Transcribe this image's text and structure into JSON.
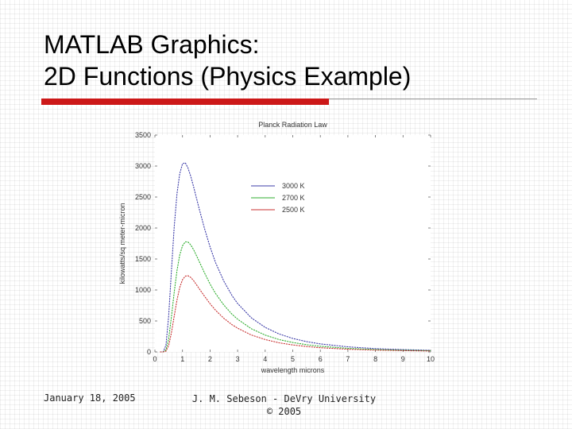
{
  "slide": {
    "title_line1": "MATLAB Graphics:",
    "title_line2": "2D Functions (Physics Example)",
    "footer_date": "January 18, 2005",
    "footer_author_line1": "J. M. Sebeson - DeVry University",
    "footer_author_line2": "© 2005"
  },
  "colors": {
    "accent_bar": "#cc1818",
    "series_3000": "#3c3ca8",
    "series_2700": "#2fae2f",
    "series_2500": "#c83232"
  },
  "chart_data": {
    "type": "line",
    "title": "Planck Radiation Law",
    "xlabel": "wavelength microns",
    "ylabel": "kilowatts/sq meter-micron",
    "xlim": [
      0,
      10
    ],
    "ylim": [
      0,
      3500
    ],
    "xticks": [
      0,
      1,
      2,
      3,
      4,
      5,
      6,
      7,
      8,
      9,
      10
    ],
    "yticks": [
      0,
      500,
      1000,
      1500,
      2000,
      2500,
      3000,
      3500
    ],
    "grid": false,
    "legend_position": "top-center",
    "line_style": "dotted",
    "series": [
      {
        "name": "3000 K",
        "color": "#3c3ca8",
        "x": [
          0.2,
          0.3,
          0.4,
          0.5,
          0.6,
          0.7,
          0.8,
          0.9,
          1.0,
          1.1,
          1.2,
          1.3,
          1.4,
          1.5,
          1.6,
          1.8,
          2.0,
          2.2,
          2.5,
          2.8,
          3.0,
          3.5,
          4.0,
          4.5,
          5.0,
          5.5,
          6.0,
          7.0,
          8.0,
          9.0,
          10.0
        ],
        "values": [
          0,
          2,
          106,
          578,
          1313,
          2022,
          2555,
          2875,
          3036,
          3054,
          2969,
          2834,
          2671,
          2497,
          2322,
          1988,
          1695,
          1442,
          1141,
          907,
          782,
          550,
          396,
          291,
          218,
          167,
          130,
          82,
          54,
          37,
          26
        ]
      },
      {
        "name": "2700 K",
        "color": "#2fae2f",
        "x": [
          0.2,
          0.3,
          0.4,
          0.5,
          0.6,
          0.7,
          0.8,
          0.9,
          1.0,
          1.1,
          1.2,
          1.3,
          1.4,
          1.5,
          1.6,
          1.8,
          2.0,
          2.2,
          2.5,
          2.8,
          3.0,
          3.5,
          4.0,
          4.5,
          5.0,
          5.5,
          6.0,
          7.0,
          8.0,
          9.0,
          10.0
        ],
        "values": [
          0,
          0,
          32,
          215,
          567,
          965,
          1313,
          1563,
          1713,
          1777,
          1775,
          1728,
          1653,
          1563,
          1467,
          1274,
          1096,
          944,
          756,
          606,
          528,
          374,
          272,
          200,
          152,
          117,
          91,
          58,
          38,
          27,
          19
        ]
      },
      {
        "name": "2500 K",
        "color": "#c83232",
        "x": [
          0.2,
          0.3,
          0.4,
          0.5,
          0.6,
          0.7,
          0.8,
          0.9,
          1.0,
          1.1,
          1.2,
          1.3,
          1.4,
          1.5,
          1.6,
          1.8,
          2.0,
          2.2,
          2.5,
          2.8,
          3.0,
          3.5,
          4.0,
          4.5,
          5.0,
          5.5,
          6.0,
          7.0,
          8.0,
          9.0,
          10.0
        ],
        "values": [
          0,
          0,
          12,
          102,
          311,
          580,
          838,
          1039,
          1166,
          1223,
          1230,
          1202,
          1152,
          1091,
          1026,
          898,
          778,
          673,
          542,
          438,
          383,
          273,
          200,
          148,
          113,
          87,
          68,
          44,
          29,
          20,
          14
        ]
      }
    ]
  }
}
